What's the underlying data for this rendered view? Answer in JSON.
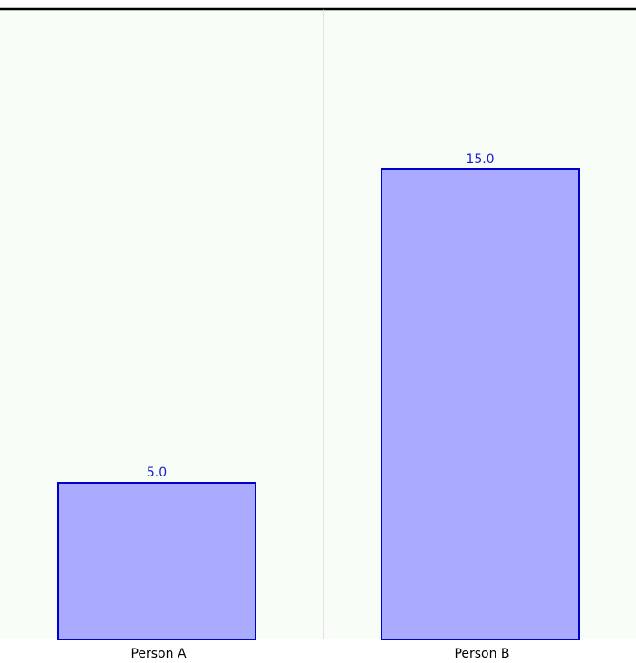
{
  "chart_data": {
    "type": "bar",
    "categories": [
      "Person A",
      "Person B"
    ],
    "values": [
      5.0,
      15.0
    ],
    "value_labels": [
      "5.0",
      "15.0"
    ],
    "title": "",
    "xlabel": "",
    "ylabel": "",
    "grid": false,
    "legend": "none"
  },
  "colors": {
    "background": "#f8fdf8",
    "bar_fill": "#aaaaff",
    "bar_stroke": "#0000cc",
    "value_label": "#1a1acc",
    "category_label": "#000000",
    "top_border": "#000000",
    "divider": "#cccccc"
  }
}
